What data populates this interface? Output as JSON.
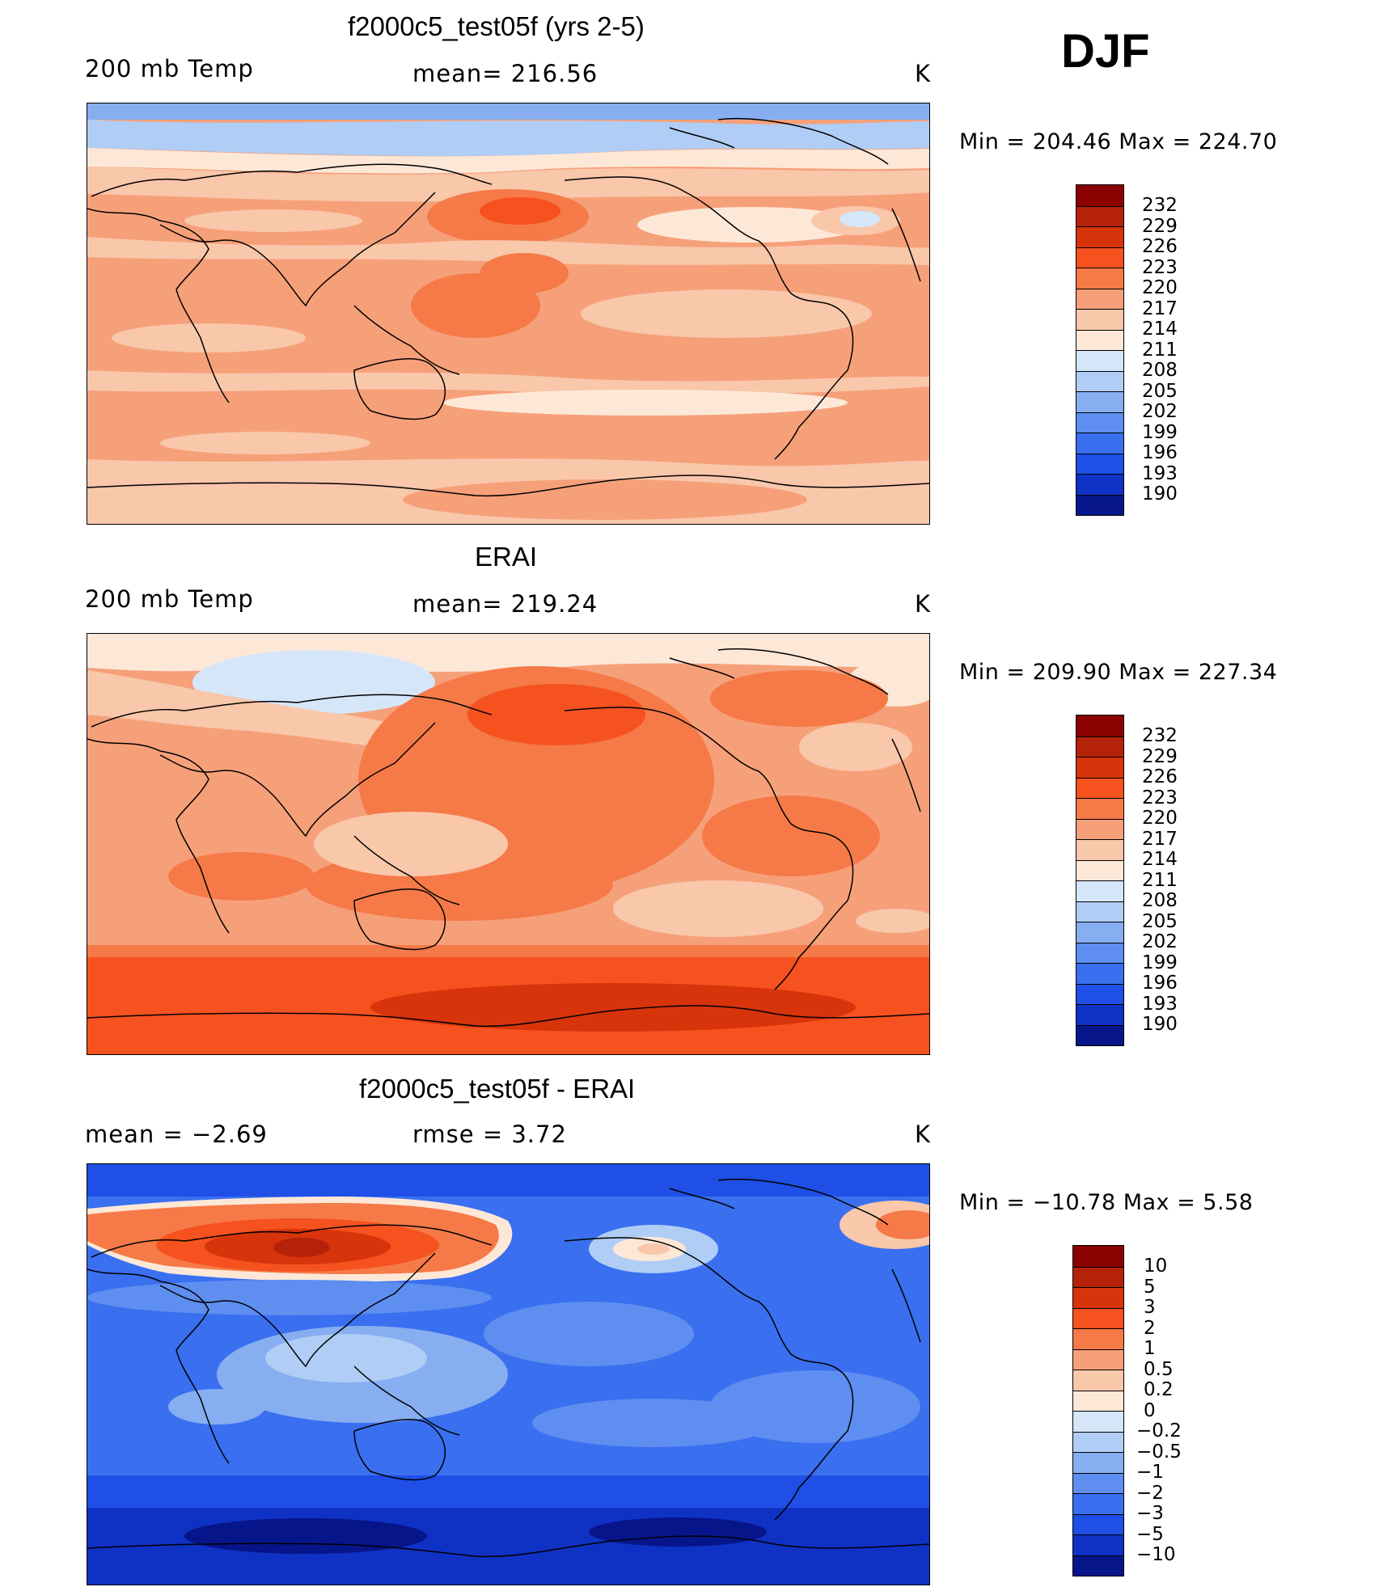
{
  "season": "DJF",
  "panels": [
    {
      "title": "f2000c5_test05f (yrs 2-5)",
      "left_label": "200 mb Temp",
      "center_label": "mean= 216.56",
      "unit": "K",
      "minmax": "Min  =  204.46  Max  =  224.70",
      "colorbar_labels": [
        "232",
        "229",
        "226",
        "223",
        "220",
        "217",
        "214",
        "211",
        "208",
        "205",
        "202",
        "199",
        "196",
        "193",
        "190"
      ]
    },
    {
      "title": "ERAI",
      "left_label": "200 mb Temp",
      "center_label": "mean= 219.24",
      "unit": "K",
      "minmax": "Min  =  209.90  Max  =  227.34",
      "colorbar_labels": [
        "232",
        "229",
        "226",
        "223",
        "220",
        "217",
        "214",
        "211",
        "208",
        "205",
        "202",
        "199",
        "196",
        "193",
        "190"
      ]
    },
    {
      "title": "f2000c5_test05f - ERAI",
      "left_label": "mean =    −2.69",
      "center_label": "rmse =     3.72",
      "unit": "K",
      "minmax": "Min  =  −10.78  Max  =      5.58",
      "colorbar_labels": [
        "10",
        "5",
        "3",
        "2",
        "1",
        "0.5",
        "0.2",
        "0",
        "−0.2",
        "−0.5",
        "−1",
        "−2",
        "−3",
        "−5",
        "−10"
      ]
    }
  ],
  "colors": {
    "temp_scale": [
      "#8b0000",
      "#b5220a",
      "#d8340c",
      "#f5521f",
      "#f57a48",
      "#f6a07a",
      "#f9c7aa",
      "#fde8d8",
      "#d6e6f9",
      "#b0cdf5",
      "#86aef0",
      "#5d8ef0",
      "#3a6ff0",
      "#1f4fe6",
      "#0f31c4",
      "#07158a"
    ],
    "diff_scale": [
      "#8b0000",
      "#b5220a",
      "#d8340c",
      "#f5521f",
      "#f57a48",
      "#f6a07a",
      "#f9c7aa",
      "#fde8d8",
      "#d6e6f9",
      "#b0cdf5",
      "#86aef0",
      "#5d8ef0",
      "#3a6ff0",
      "#1f4fe6",
      "#0f31c4",
      "#07158a"
    ]
  }
}
